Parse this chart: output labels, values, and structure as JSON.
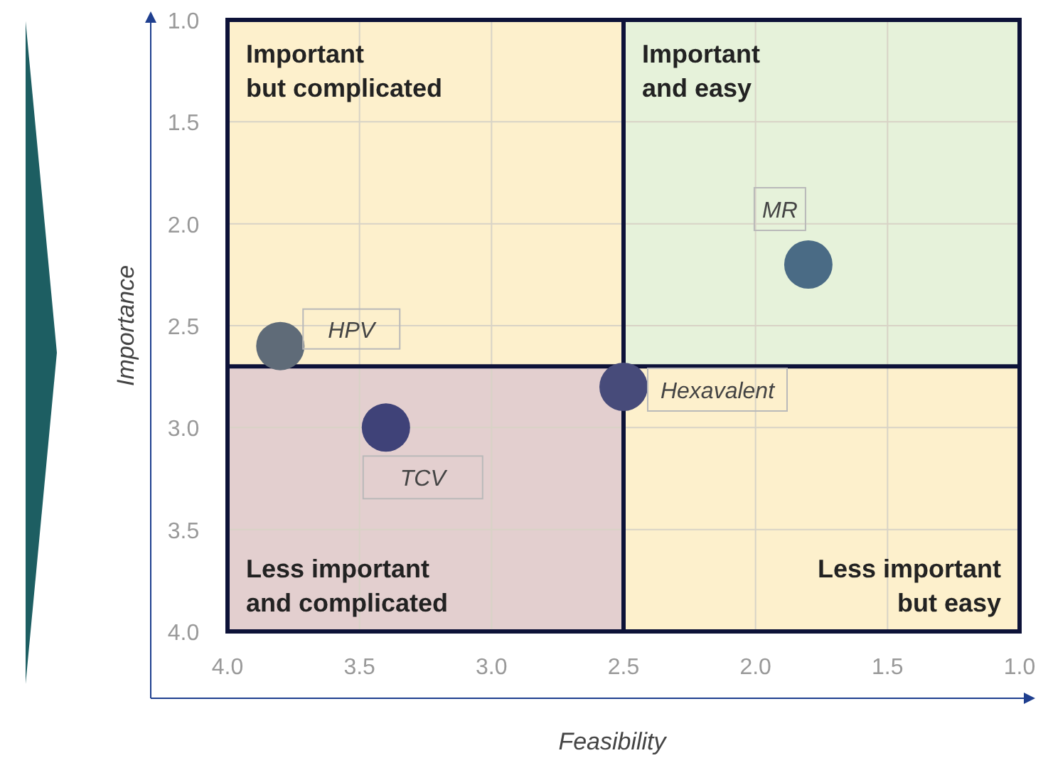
{
  "chart_data": {
    "type": "scatter",
    "xlabel": "Feasibility",
    "ylabel": "Importance",
    "xlim": [
      4.0,
      1.0
    ],
    "ylim": [
      4.0,
      1.0
    ],
    "xticks": [
      {
        "value": 4,
        "label": "4.0"
      },
      {
        "value": 3.5,
        "label": "3.5"
      },
      {
        "value": 3,
        "label": "3.0"
      },
      {
        "value": 2.5,
        "label": "2.5"
      },
      {
        "value": 2,
        "label": "2.0"
      },
      {
        "value": 1.5,
        "label": "1.5"
      },
      {
        "value": 1,
        "label": "1.0"
      }
    ],
    "yticks": [
      {
        "value": 1,
        "label": "1.0"
      },
      {
        "value": 1.5,
        "label": "1.5"
      },
      {
        "value": 2,
        "label": "2.0"
      },
      {
        "value": 2.5,
        "label": "2.5"
      },
      {
        "value": 3,
        "label": "3.0"
      },
      {
        "value": 3.5,
        "label": "3.5"
      },
      {
        "value": 4,
        "label": "4.0"
      }
    ],
    "grid": true,
    "marker": "circle",
    "series": [
      {
        "name": "HPV",
        "color": "#5f6b78",
        "x": [
          3.8
        ],
        "values": [
          2.6
        ]
      },
      {
        "name": "TCV",
        "color": "#3f4278",
        "x": [
          3.4
        ],
        "values": [
          3.0
        ]
      },
      {
        "name": "Hexavalent",
        "color": "#474b7a",
        "x": [
          2.5
        ],
        "values": [
          2.8
        ]
      },
      {
        "name": "MR",
        "color": "#4a6b85",
        "x": [
          1.8
        ],
        "values": [
          2.2
        ]
      }
    ],
    "ref_lines": [
      {
        "axis": "x",
        "value": 2.5,
        "color": "#0d1238"
      },
      {
        "axis": "y",
        "value": 2.7,
        "color": "#0d1238"
      }
    ],
    "annotations": [
      "Important\nbut complicated",
      "Important\nand easy",
      "Less important\nand complicated",
      "Less important\nbut easy"
    ]
  }
}
